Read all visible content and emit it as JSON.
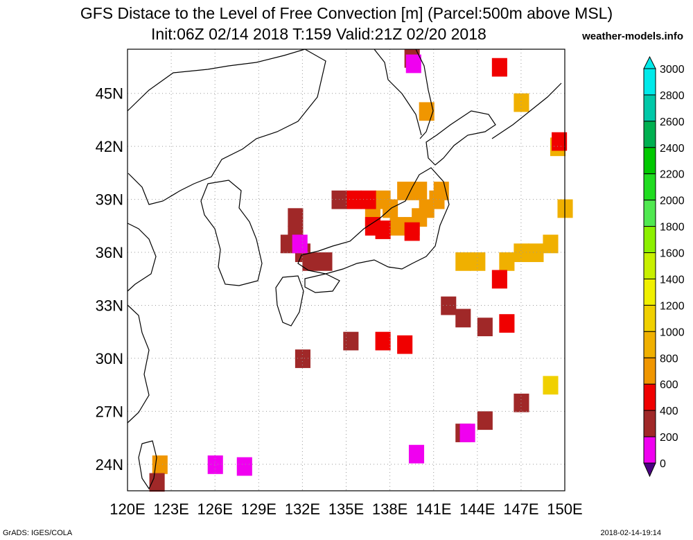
{
  "title_line1": "GFS Distace to the Level of Free Convection [m] (Parcel:500m above MSL)",
  "title_line2": "Init:06Z 02/14 2018 T:159 Valid:21Z 02/20 2018",
  "site": "weather-models.info",
  "footer_left": "GrADS: IGES/COLA",
  "footer_right": "2018-02-14-19:14",
  "lon_ticks": [
    "120E",
    "123E",
    "126E",
    "129E",
    "132E",
    "135E",
    "138E",
    "141E",
    "144E",
    "147E",
    "150E"
  ],
  "lat_ticks": [
    "45N",
    "42N",
    "39N",
    "36N",
    "33N",
    "30N",
    "27N",
    "24N"
  ],
  "colorbar": {
    "labels": [
      "3000",
      "2800",
      "2600",
      "2400",
      "2200",
      "2000",
      "1800",
      "1600",
      "1400",
      "1200",
      "1000",
      "800",
      "600",
      "400",
      "200",
      "0"
    ],
    "colors": [
      "#00eaea",
      "#00c8a8",
      "#00b050",
      "#00c800",
      "#20dc20",
      "#50e850",
      "#8cf000",
      "#c8f000",
      "#f0f000",
      "#f0d000",
      "#f0b000",
      "#f09600",
      "#f00000",
      "#a02828",
      "#f000f0",
      "#5a00a0",
      "#4b0082"
    ]
  },
  "chart_data": {
    "type": "heatmap",
    "title": "GFS Distace to the Level of Free Convection [m] (Parcel:500m above MSL)",
    "lon_range": [
      120,
      150
    ],
    "lat_range": [
      22.5,
      47.5
    ],
    "units": "m",
    "cells": [
      {
        "lon": 141.5,
        "lat": 39.5,
        "v": 800
      },
      {
        "lon": 141.2,
        "lat": 39.0,
        "v": 800
      },
      {
        "lon": 140.5,
        "lat": 38.5,
        "v": 800
      },
      {
        "lon": 140.0,
        "lat": 38.0,
        "v": 800
      },
      {
        "lon": 139.5,
        "lat": 37.5,
        "v": 800
      },
      {
        "lon": 138.5,
        "lat": 37.5,
        "v": 800
      },
      {
        "lon": 138.0,
        "lat": 38.5,
        "v": 800
      },
      {
        "lon": 137.5,
        "lat": 39.0,
        "v": 800
      },
      {
        "lon": 136.8,
        "lat": 38.0,
        "v": 800
      },
      {
        "lon": 139.0,
        "lat": 39.5,
        "v": 800
      },
      {
        "lon": 140.0,
        "lat": 39.5,
        "v": 800
      },
      {
        "lon": 137.5,
        "lat": 37.3,
        "v": 600
      },
      {
        "lon": 136.8,
        "lat": 37.5,
        "v": 600
      },
      {
        "lon": 139.5,
        "lat": 37.2,
        "v": 600
      },
      {
        "lon": 135.5,
        "lat": 39.0,
        "v": 600
      },
      {
        "lon": 136.5,
        "lat": 39.0,
        "v": 600
      },
      {
        "lon": 134.5,
        "lat": 39.0,
        "v": 400
      },
      {
        "lon": 131.5,
        "lat": 38.0,
        "v": 400
      },
      {
        "lon": 131.5,
        "lat": 37.0,
        "v": 400
      },
      {
        "lon": 131.0,
        "lat": 36.5,
        "v": 400
      },
      {
        "lon": 132.0,
        "lat": 36.0,
        "v": 400
      },
      {
        "lon": 132.5,
        "lat": 35.5,
        "v": 400
      },
      {
        "lon": 133.5,
        "lat": 35.5,
        "v": 400
      },
      {
        "lon": 131.8,
        "lat": 36.5,
        "v": 200
      },
      {
        "lon": 147.0,
        "lat": 36.0,
        "v": 1000
      },
      {
        "lon": 148.0,
        "lat": 36.0,
        "v": 1000
      },
      {
        "lon": 149.0,
        "lat": 36.5,
        "v": 1000
      },
      {
        "lon": 146.0,
        "lat": 35.5,
        "v": 1000
      },
      {
        "lon": 144.0,
        "lat": 35.5,
        "v": 1000
      },
      {
        "lon": 143.0,
        "lat": 35.5,
        "v": 1000
      },
      {
        "lon": 150.0,
        "lat": 38.5,
        "v": 1000
      },
      {
        "lon": 149.5,
        "lat": 42.0,
        "v": 1000
      },
      {
        "lon": 145.5,
        "lat": 34.5,
        "v": 600
      },
      {
        "lon": 140.5,
        "lat": 44.0,
        "v": 800
      },
      {
        "lon": 147.0,
        "lat": 44.5,
        "v": 1000
      },
      {
        "lon": 139.5,
        "lat": 47.0,
        "v": 400
      },
      {
        "lon": 139.6,
        "lat": 46.7,
        "v": 200
      },
      {
        "lon": 145.5,
        "lat": 46.5,
        "v": 600
      },
      {
        "lon": 149.6,
        "lat": 42.3,
        "v": 600
      },
      {
        "lon": 142.0,
        "lat": 33.0,
        "v": 400
      },
      {
        "lon": 143.0,
        "lat": 32.3,
        "v": 400
      },
      {
        "lon": 144.5,
        "lat": 31.8,
        "v": 400
      },
      {
        "lon": 146.0,
        "lat": 32.0,
        "v": 600
      },
      {
        "lon": 137.5,
        "lat": 31.0,
        "v": 600
      },
      {
        "lon": 139.0,
        "lat": 30.8,
        "v": 600
      },
      {
        "lon": 135.3,
        "lat": 31.0,
        "v": 400
      },
      {
        "lon": 132.0,
        "lat": 30.0,
        "v": 400
      },
      {
        "lon": 147.0,
        "lat": 27.5,
        "v": 400
      },
      {
        "lon": 144.5,
        "lat": 26.5,
        "v": 400
      },
      {
        "lon": 143.0,
        "lat": 25.8,
        "v": 400
      },
      {
        "lon": 143.3,
        "lat": 25.8,
        "v": 200
      },
      {
        "lon": 149.0,
        "lat": 28.5,
        "v": 1200
      },
      {
        "lon": 122.2,
        "lat": 24.0,
        "v": 800
      },
      {
        "lon": 122.0,
        "lat": 23.0,
        "v": 400
      },
      {
        "lon": 126.0,
        "lat": 24.0,
        "v": 200
      },
      {
        "lon": 128.0,
        "lat": 23.9,
        "v": 200
      },
      {
        "lon": 139.8,
        "lat": 24.6,
        "v": 200
      }
    ]
  }
}
